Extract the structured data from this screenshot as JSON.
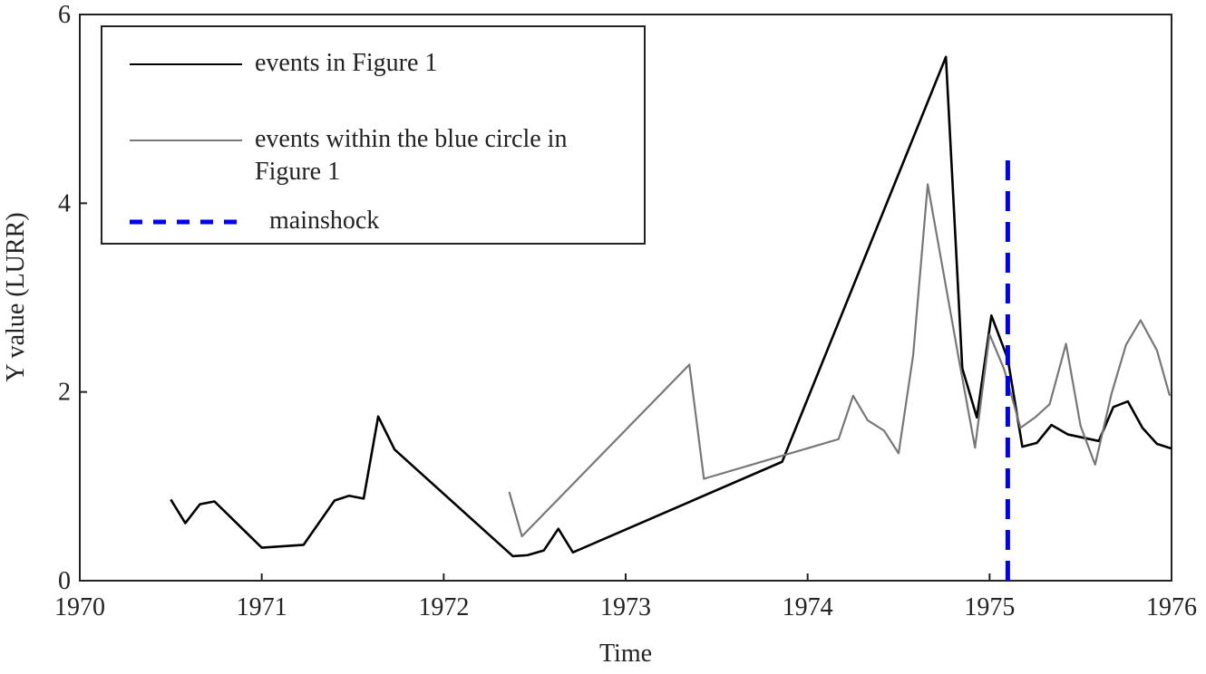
{
  "chart_data": {
    "type": "line",
    "xlabel": "Time",
    "ylabel": "Y value (LURR)",
    "xlim": [
      1970,
      1976
    ],
    "xticks": [
      1970,
      1971,
      1972,
      1973,
      1974,
      1975,
      1976
    ],
    "ylim": [
      0,
      6
    ],
    "yticks": [
      0,
      2,
      4,
      6
    ],
    "legend": "upper left",
    "series": [
      {
        "name": "events in Figure 1",
        "color": "#000000",
        "style": "solid",
        "x": [
          1970.5,
          1970.58,
          1970.66,
          1970.74,
          1971.0,
          1971.23,
          1971.4,
          1971.48,
          1971.56,
          1971.64,
          1971.73,
          1972.38,
          1972.46,
          1972.55,
          1972.63,
          1972.71,
          1973.86,
          1974.76,
          1974.85,
          1974.93,
          1975.01,
          1975.1,
          1975.18,
          1975.26,
          1975.34,
          1975.43,
          1975.6,
          1975.68,
          1975.76,
          1975.84,
          1975.92,
          1976.0
        ],
        "values": [
          0.86,
          0.61,
          0.81,
          0.84,
          0.35,
          0.38,
          0.85,
          0.9,
          0.87,
          1.74,
          1.39,
          0.26,
          0.27,
          0.32,
          0.55,
          0.3,
          1.26,
          5.55,
          2.25,
          1.73,
          2.81,
          2.35,
          1.42,
          1.46,
          1.65,
          1.55,
          1.48,
          1.84,
          1.9,
          1.62,
          1.45,
          1.4
        ]
      },
      {
        "name": "events within the blue circle in Figure 1",
        "color": "#777777",
        "style": "solid",
        "x": [
          1972.36,
          1972.43,
          1973.35,
          1973.43,
          1974.17,
          1974.25,
          1974.33,
          1974.42,
          1974.5,
          1974.58,
          1974.66,
          1974.83,
          1974.92,
          1975.0,
          1975.08,
          1975.17,
          1975.25,
          1975.33,
          1975.42,
          1975.5,
          1975.58,
          1975.67,
          1975.75,
          1975.83,
          1975.92,
          1975.99
        ],
        "values": [
          0.94,
          0.47,
          2.29,
          1.08,
          1.5,
          1.96,
          1.7,
          1.59,
          1.35,
          2.39,
          4.2,
          2.36,
          1.41,
          2.61,
          2.24,
          1.62,
          1.73,
          1.87,
          2.51,
          1.64,
          1.23,
          1.98,
          2.5,
          2.76,
          2.44,
          1.96
        ]
      },
      {
        "name": "mainshock",
        "color": "#0000ee",
        "style": "dashed",
        "x": [
          1975.1,
          1975.1
        ],
        "values": [
          0,
          4.55
        ]
      }
    ]
  }
}
